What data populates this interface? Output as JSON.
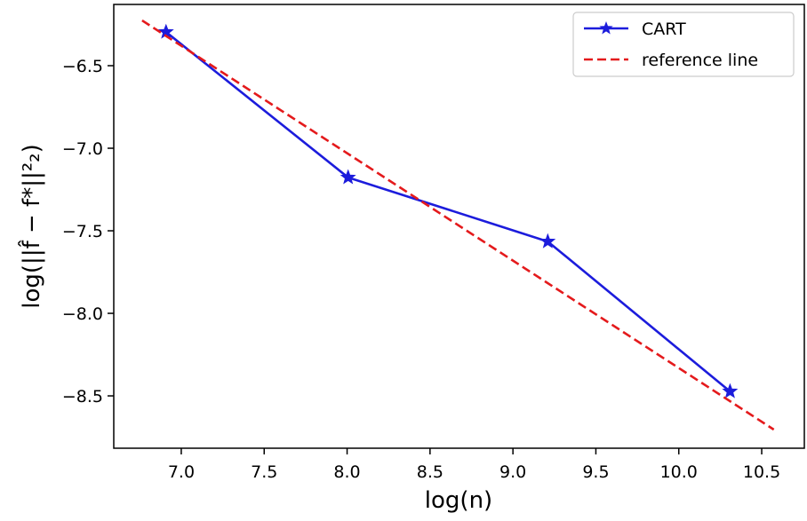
{
  "chart_data": {
    "type": "line",
    "xlabel": "log(n)",
    "ylabel": "log(||f̂ − f*||²₂)",
    "xlim": [
      6.593,
      10.757
    ],
    "ylim": [
      -8.817,
      -6.129
    ],
    "xticks": [
      {
        "value": 7.0,
        "label": "7.0"
      },
      7.5,
      {
        "value": 8.0,
        "label": "8.0"
      },
      8.5,
      {
        "value": 9.0,
        "label": "9.0"
      },
      9.5,
      {
        "value": 10.0,
        "label": "10.0"
      },
      10.5
    ],
    "yticks": [
      {
        "value": -6.5,
        "label": "−6.5"
      },
      {
        "value": -7.0,
        "label": "−7.0"
      },
      {
        "value": -7.5,
        "label": "−7.5"
      },
      {
        "value": -8.0,
        "label": "−8.0"
      },
      {
        "value": -8.5,
        "label": "−8.5"
      }
    ],
    "legend": "upper right",
    "series": [
      {
        "name": "CART",
        "color": "#1c1cdc",
        "style": "solid",
        "marker": "star",
        "x": [
          6.908,
          8.006,
          9.21,
          10.309
        ],
        "values": [
          -6.296,
          -7.177,
          -7.565,
          -8.473
        ]
      },
      {
        "name": "reference line",
        "color": "#e41a1c",
        "style": "dashed",
        "x": [
          6.764,
          10.573
        ],
        "values": [
          -6.226,
          -8.704
        ]
      }
    ]
  }
}
